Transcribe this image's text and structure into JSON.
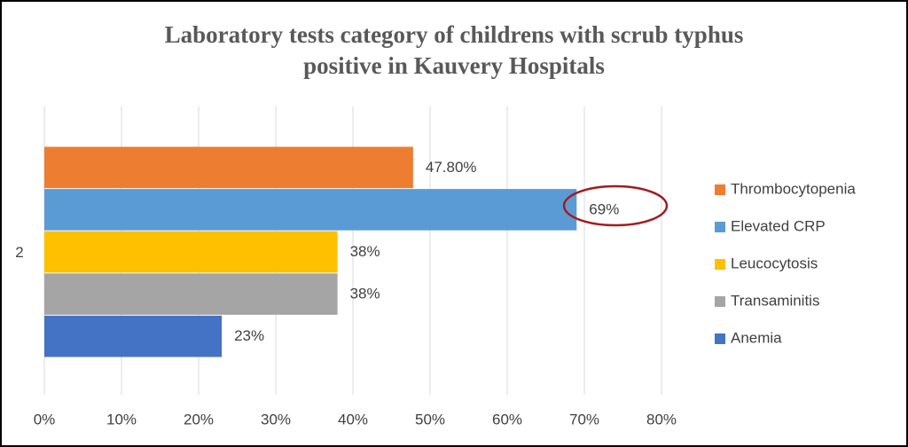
{
  "chart_data": {
    "type": "bar",
    "orientation": "horizontal",
    "title": [
      "Laboratory tests category of childrens with scrub typhus",
      "positive in Kauvery Hospitals"
    ],
    "categories": [
      "2"
    ],
    "series": [
      {
        "name": "Thrombocytopenia",
        "color": "#ed7d31",
        "values": [
          47.8
        ],
        "value_labels": [
          "47.80%"
        ]
      },
      {
        "name": "Elevated CRP",
        "color": "#5b9bd5",
        "values": [
          69
        ],
        "value_labels": [
          "69%"
        ]
      },
      {
        "name": "Leucocytosis",
        "color": "#ffc000",
        "values": [
          38
        ],
        "value_labels": [
          "38%"
        ]
      },
      {
        "name": "Transaminitis",
        "color": "#a5a5a5",
        "values": [
          38
        ],
        "value_labels": [
          "38%"
        ]
      },
      {
        "name": "Anemia",
        "color": "#4472c4",
        "values": [
          23
        ],
        "value_labels": [
          "23%"
        ]
      }
    ],
    "xlim": [
      0,
      80
    ],
    "xticks": [
      {
        "value": 0,
        "label": "0%"
      },
      {
        "value": 10,
        "label": "10%"
      },
      {
        "value": 20,
        "label": "20%"
      },
      {
        "value": 30,
        "label": "30%"
      },
      {
        "value": 40,
        "label": "40%"
      },
      {
        "value": 50,
        "label": "50%"
      },
      {
        "value": 60,
        "label": "60%"
      },
      {
        "value": 70,
        "label": "70%"
      },
      {
        "value": 80,
        "label": "80%"
      }
    ],
    "grid": true,
    "legend": "right"
  }
}
